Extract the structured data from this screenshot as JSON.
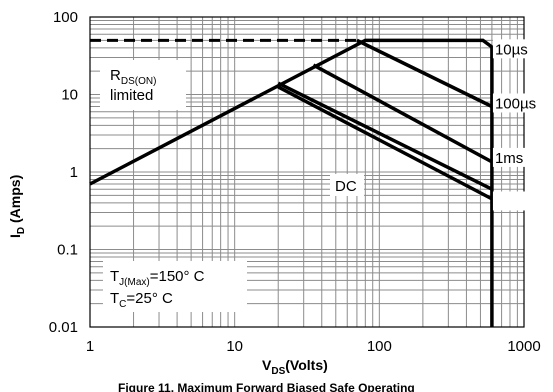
{
  "chart_data": {
    "type": "line",
    "xscale": "log",
    "yscale": "log",
    "xlim": [
      1,
      1000
    ],
    "ylim": [
      0.01,
      100
    ],
    "grid": true,
    "xlabel_main": "V",
    "xlabel_sub": "DS",
    "xlabel_rest": "(Volts)",
    "ylabel_main": "I",
    "ylabel_sub": "D",
    "ylabel_rest": " (Amps)",
    "x_ticks": [
      {
        "v": 1,
        "label": "1"
      },
      {
        "v": 10,
        "label": "10"
      },
      {
        "v": 100,
        "label": "100"
      },
      {
        "v": 1000,
        "label": "1000"
      }
    ],
    "y_ticks": [
      {
        "v": 100,
        "label": "100"
      },
      {
        "v": 10,
        "label": "10"
      },
      {
        "v": 1,
        "label": "1"
      },
      {
        "v": 0.1,
        "label": "0.1"
      },
      {
        "v": 0.01,
        "label": "0.01"
      }
    ],
    "limit_dashed": {
      "x": [
        1,
        70
      ],
      "y": [
        50,
        50
      ]
    },
    "series": [
      {
        "name": "10µs",
        "x": [
          1,
          80,
          520,
          600,
          600
        ],
        "y": [
          0.7,
          50,
          50,
          41,
          0.01
        ]
      },
      {
        "name": "100µs",
        "x": [
          70,
          600
        ],
        "y": [
          50,
          7
        ]
      },
      {
        "name": "1ms",
        "x": [
          35,
          600
        ],
        "y": [
          24,
          1.35
        ]
      },
      {
        "name": "",
        "x": [
          20,
          600
        ],
        "y": [
          14,
          0.6
        ]
      },
      {
        "name": "DC",
        "x": [
          20,
          600
        ],
        "y": [
          12.5,
          0.45
        ]
      }
    ],
    "annotations": {
      "rds_main": "R",
      "rds_sub": "DS(ON)",
      "rds_line2": "limited",
      "dc": "DC",
      "tj_main": "T",
      "tj_sub": "J(Max)",
      "tj_rest": "=150° C",
      "tc_main": "T",
      "tc_sub": "C",
      "tc_rest": "=25° C"
    },
    "caption": "Figure 11. Maximum Forward Biased Safe Operating"
  }
}
